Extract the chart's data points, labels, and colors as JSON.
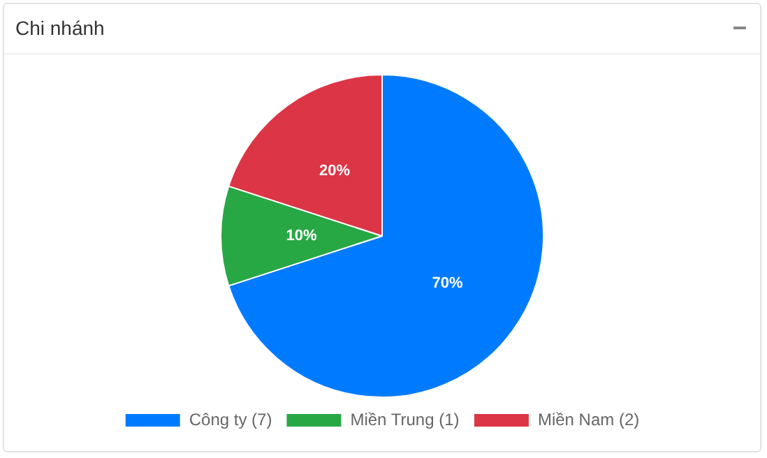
{
  "chart_data": {
    "type": "pie",
    "title": "Chi nhánh",
    "categories": [
      "Công ty (7)",
      "Miền Trung (1)",
      "Miền Nam (2)"
    ],
    "values": [
      70,
      10,
      20
    ],
    "value_labels": [
      "70%",
      "10%",
      "20%"
    ],
    "colors": [
      "#007bff",
      "#28a745",
      "#dc3545"
    ],
    "legend": "bottom"
  }
}
